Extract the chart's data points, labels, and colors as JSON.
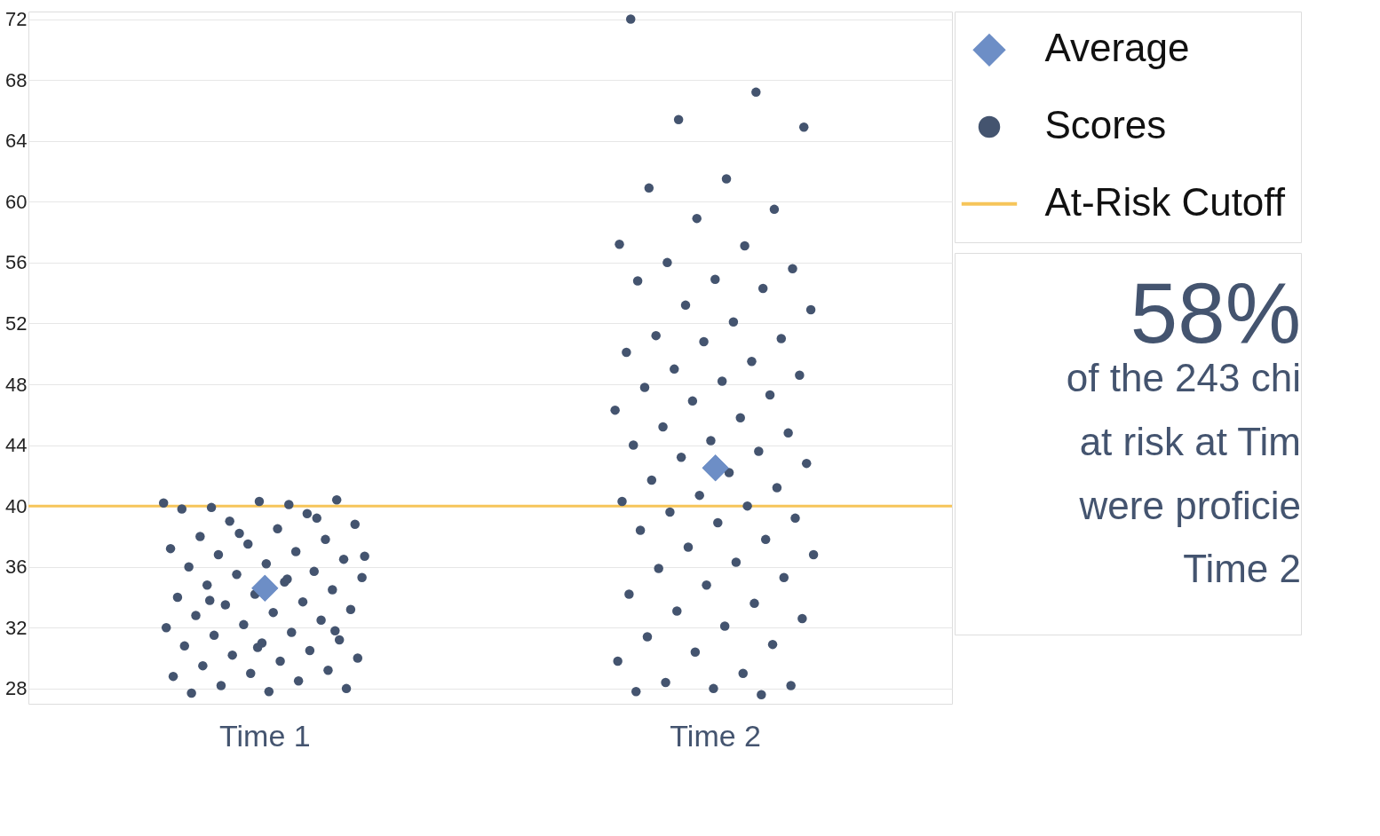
{
  "chart_data": {
    "type": "scatter",
    "categories": [
      "Time 1",
      "Time 2"
    ],
    "ylim": [
      27,
      72.5
    ],
    "yticks": [
      28,
      32,
      36,
      40,
      44,
      48,
      52,
      56,
      60,
      64,
      68,
      72
    ],
    "grid": "y",
    "legend": "top right",
    "ref_lines": [
      {
        "axis": "y",
        "value": 40,
        "label": "At-Risk Cutoff",
        "color": "#f6c55a",
        "line_style": "solid"
      }
    ],
    "series": [
      {
        "name": "Average",
        "marker": "diamond",
        "color": "#6d8ec6",
        "x": [
          "Time 1",
          "Time 2"
        ],
        "values": [
          34.6,
          42.5
        ]
      },
      {
        "name": "Scores",
        "marker": "circle",
        "color": "#44546f",
        "x": [
          "Time 1",
          "Time 1",
          "Time 1",
          "Time 1",
          "Time 1",
          "Time 1",
          "Time 1",
          "Time 1",
          "Time 1",
          "Time 1",
          "Time 1",
          "Time 1",
          "Time 1",
          "Time 1",
          "Time 1",
          "Time 1",
          "Time 1",
          "Time 1",
          "Time 1",
          "Time 1",
          "Time 1",
          "Time 1",
          "Time 1",
          "Time 1",
          "Time 1",
          "Time 1",
          "Time 1",
          "Time 1",
          "Time 1",
          "Time 1",
          "Time 1",
          "Time 1",
          "Time 1",
          "Time 1",
          "Time 1",
          "Time 1",
          "Time 1",
          "Time 1",
          "Time 1",
          "Time 1",
          "Time 1",
          "Time 1",
          "Time 1",
          "Time 1",
          "Time 1",
          "Time 1",
          "Time 1",
          "Time 1",
          "Time 1",
          "Time 1",
          "Time 1",
          "Time 1",
          "Time 1",
          "Time 1",
          "Time 1",
          "Time 1",
          "Time 1",
          "Time 1",
          "Time 1",
          "Time 1",
          "Time 2",
          "Time 2",
          "Time 2",
          "Time 2",
          "Time 2",
          "Time 2",
          "Time 2",
          "Time 2",
          "Time 2",
          "Time 2",
          "Time 2",
          "Time 2",
          "Time 2",
          "Time 2",
          "Time 2",
          "Time 2",
          "Time 2",
          "Time 2",
          "Time 2",
          "Time 2",
          "Time 2",
          "Time 2",
          "Time 2",
          "Time 2",
          "Time 2",
          "Time 2",
          "Time 2",
          "Time 2",
          "Time 2",
          "Time 2",
          "Time 2",
          "Time 2",
          "Time 2",
          "Time 2",
          "Time 2",
          "Time 2",
          "Time 2",
          "Time 2",
          "Time 2",
          "Time 2",
          "Time 2",
          "Time 2",
          "Time 2",
          "Time 2",
          "Time 2",
          "Time 2",
          "Time 2",
          "Time 2",
          "Time 2",
          "Time 2",
          "Time 2",
          "Time 2",
          "Time 2",
          "Time 2",
          "Time 2",
          "Time 2",
          "Time 2",
          "Time 2",
          "Time 2",
          "Time 2",
          "Time 2",
          "Time 2",
          "Time 2",
          "Time 2",
          "Time 2",
          "Time 2",
          "Time 2",
          "Time 2",
          "Time 2",
          "Time 2"
        ],
        "values": [
          40.2,
          40.1,
          39.9,
          40.4,
          40.3,
          39.8,
          39.5,
          39.0,
          38.8,
          38.5,
          38.0,
          37.8,
          37.5,
          37.2,
          37.0,
          36.8,
          36.5,
          36.2,
          36.0,
          35.7,
          35.5,
          35.3,
          35.0,
          34.8,
          34.5,
          34.2,
          34.0,
          33.7,
          33.5,
          33.2,
          33.0,
          32.8,
          32.5,
          32.2,
          32.0,
          31.7,
          31.5,
          31.2,
          31.0,
          30.8,
          30.5,
          30.2,
          30.0,
          29.8,
          29.5,
          29.2,
          29.0,
          28.8,
          28.5,
          28.2,
          28.0,
          27.8,
          27.7,
          39.2,
          38.2,
          36.7,
          35.2,
          33.8,
          31.8,
          30.7,
          72.0,
          67.2,
          65.4,
          64.9,
          61.5,
          60.9,
          59.5,
          58.9,
          57.2,
          57.1,
          56.0,
          55.6,
          54.9,
          54.8,
          54.3,
          53.2,
          52.9,
          52.1,
          51.2,
          51.0,
          50.8,
          50.1,
          49.5,
          49.0,
          48.6,
          48.2,
          47.8,
          47.3,
          46.9,
          46.3,
          45.8,
          45.2,
          44.8,
          44.3,
          44.0,
          43.6,
          43.2,
          42.8,
          42.2,
          41.7,
          41.2,
          40.7,
          40.3,
          40.0,
          39.6,
          39.2,
          38.9,
          38.4,
          37.8,
          37.3,
          36.8,
          36.3,
          35.9,
          35.3,
          34.8,
          34.2,
          33.6,
          33.1,
          32.6,
          32.1,
          31.4,
          30.9,
          30.4,
          29.8,
          29.0,
          28.4,
          28.2,
          28.0,
          27.8,
          27.6
        ]
      }
    ],
    "annotations": [
      "58%",
      "of the 243 chi",
      "at risk at Tim",
      "were proficie",
      "Time 2"
    ]
  }
}
